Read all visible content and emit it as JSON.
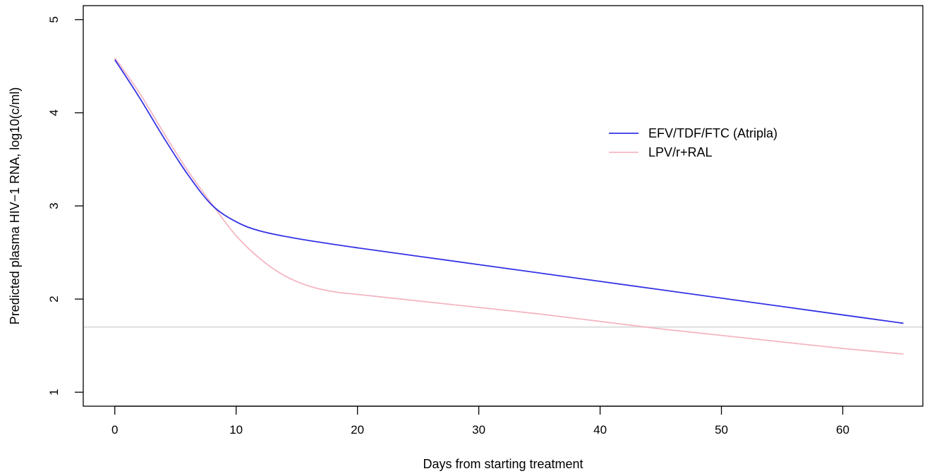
{
  "chart_data": {
    "type": "line",
    "title": "",
    "xlabel": "Days from starting treatment",
    "ylabel": "Predicted plasma HIV−1 RNA, log10(c/ml)",
    "xlim": [
      -2.6,
      66.6
    ],
    "ylim": [
      0.85,
      5.15
    ],
    "xticks": [
      0,
      10,
      20,
      30,
      40,
      50,
      60
    ],
    "yticks": [
      1,
      2,
      3,
      4,
      5
    ],
    "grid": false,
    "legend_position": "top-right",
    "reference_line": {
      "y": 1.7,
      "color": "#dddddd"
    },
    "series": [
      {
        "name": "EFV/TDF/FTC (Atripla)",
        "color": "#3333e6",
        "x": [
          0,
          2,
          4,
          6,
          8,
          10,
          12,
          15,
          20,
          25,
          30,
          35,
          40,
          45,
          50,
          55,
          60,
          65
        ],
        "y": [
          4.57,
          4.17,
          3.74,
          3.34,
          3.01,
          2.83,
          2.73,
          2.65,
          2.55,
          2.46,
          2.37,
          2.28,
          2.19,
          2.1,
          2.01,
          1.92,
          1.83,
          1.74
        ]
      },
      {
        "name": "LPV/r+RAL",
        "color": "#f4b6c2",
        "x": [
          0,
          2,
          4,
          6,
          8,
          10,
          12,
          14,
          16,
          18,
          20,
          25,
          30,
          35,
          40,
          45,
          50,
          55,
          60,
          65
        ],
        "y": [
          4.59,
          4.22,
          3.79,
          3.38,
          3.02,
          2.68,
          2.43,
          2.25,
          2.14,
          2.08,
          2.05,
          1.98,
          1.91,
          1.84,
          1.76,
          1.68,
          1.61,
          1.54,
          1.47,
          1.41
        ]
      }
    ]
  }
}
